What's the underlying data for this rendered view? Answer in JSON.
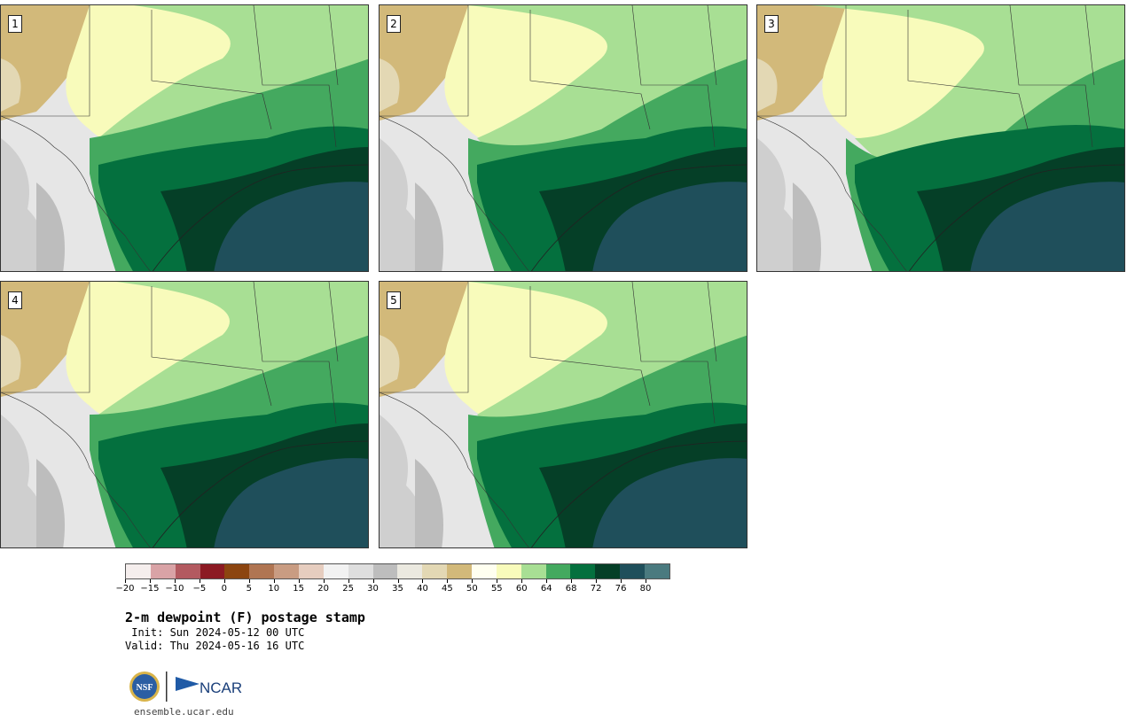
{
  "panels": [
    {
      "number": "1",
      "variant": 0
    },
    {
      "number": "2",
      "variant": 1
    },
    {
      "number": "3",
      "variant": 2
    },
    {
      "number": "4",
      "variant": 3
    },
    {
      "number": "5",
      "variant": 4
    }
  ],
  "colorbar": {
    "colors": [
      "#f5eeed",
      "#d9a3a6",
      "#b35a60",
      "#8c1a23",
      "#8c4510",
      "#b07552",
      "#c99c82",
      "#e6cdbf",
      "#f2f2f2",
      "#dedede",
      "#bdbdbd",
      "#ebe9e0",
      "#e3d8b4",
      "#d2b97a",
      "#fffff0",
      "#f8fbbb",
      "#a8df94",
      "#44a95f",
      "#04703e",
      "#053f27",
      "#1f4f5b",
      "#4a7a7f"
    ],
    "tick_labels": [
      "−20",
      "−15",
      "−10",
      "−5",
      "0",
      "5",
      "10",
      "15",
      "20",
      "25",
      "30",
      "35",
      "40",
      "45",
      "50",
      "55",
      "60",
      "64",
      "68",
      "72",
      "76",
      "80"
    ]
  },
  "title": "2-m dewpoint (F) postage stamp",
  "init": " Init: Sun 2024-05-12 00 UTC",
  "valid": "Valid: Thu 2024-05-16 16 UTC",
  "logo": {
    "left_text": "NSF",
    "right_text": "NCAR"
  },
  "url": "ensemble.ucar.edu"
}
